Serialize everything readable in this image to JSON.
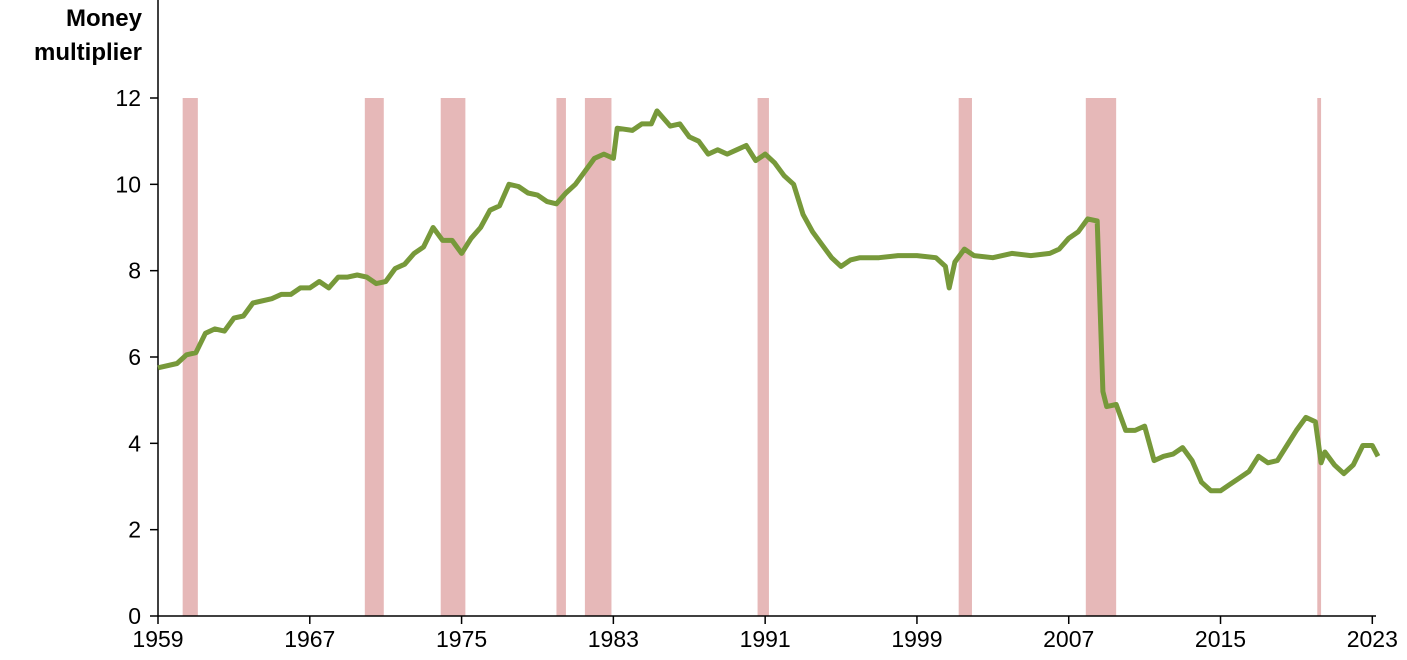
{
  "chart_data": {
    "type": "line",
    "y_label": "Money multiplier",
    "x": [
      1959,
      1960,
      1960.5,
      1961,
      1961.5,
      1962,
      1962.5,
      1963,
      1963.5,
      1964,
      1965,
      1965.5,
      1966,
      1966.5,
      1967,
      1967.5,
      1968,
      1968.5,
      1969,
      1969.5,
      1970,
      1970.5,
      1971,
      1971.5,
      1972,
      1972.5,
      1973,
      1973.5,
      1974,
      1974.5,
      1975,
      1975.5,
      1976,
      1976.5,
      1977,
      1977.5,
      1978,
      1978.5,
      1979,
      1979.5,
      1980,
      1980.5,
      1981,
      1981.5,
      1982,
      1982.5,
      1983,
      1983.2,
      1984,
      1984.5,
      1985,
      1985.3,
      1986,
      1986.5,
      1987,
      1987.5,
      1988,
      1988.5,
      1989,
      1989.5,
      1990,
      1990.5,
      1991,
      1991.5,
      1992,
      1992.5,
      1993,
      1993.5,
      1994,
      1994.5,
      1995,
      1995.5,
      1996,
      1997,
      1998,
      1999,
      2000,
      2000.5,
      2000.7,
      2001,
      2001.5,
      2002,
      2003,
      2004,
      2005,
      2006,
      2006.5,
      2007,
      2007.5,
      2008,
      2008.5,
      2008.8,
      2009,
      2009.5,
      2010,
      2010.5,
      2011,
      2011.5,
      2012,
      2012.5,
      2013,
      2013.5,
      2014,
      2014.5,
      2015,
      2015.5,
      2016,
      2016.5,
      2017,
      2017.5,
      2018,
      2018.5,
      2019,
      2019.5,
      2020,
      2020.3,
      2020.5,
      2021,
      2021.5,
      2022,
      2022.5,
      2023,
      2023.3
    ],
    "series": [
      {
        "name": "Money multiplier",
        "color": "#77993a",
        "values": [
          5.75,
          5.85,
          6.05,
          6.1,
          6.55,
          6.65,
          6.6,
          6.9,
          6.95,
          7.25,
          7.35,
          7.45,
          7.45,
          7.6,
          7.6,
          7.75,
          7.6,
          7.85,
          7.85,
          7.9,
          7.85,
          7.7,
          7.75,
          8.05,
          8.15,
          8.4,
          8.55,
          9.0,
          8.7,
          8.7,
          8.4,
          8.75,
          9.0,
          9.4,
          9.5,
          10.0,
          9.95,
          9.8,
          9.75,
          9.6,
          9.55,
          9.8,
          10.0,
          10.3,
          10.6,
          10.7,
          10.6,
          11.3,
          11.25,
          11.4,
          11.4,
          11.7,
          11.35,
          11.4,
          11.1,
          11.0,
          10.7,
          10.8,
          10.7,
          10.8,
          10.9,
          10.55,
          10.7,
          10.5,
          10.2,
          10.0,
          9.3,
          8.9,
          8.6,
          8.3,
          8.1,
          8.25,
          8.3,
          8.3,
          8.35,
          8.35,
          8.3,
          8.1,
          7.6,
          8.2,
          8.5,
          8.35,
          8.3,
          8.4,
          8.35,
          8.4,
          8.5,
          8.75,
          8.9,
          9.2,
          9.15,
          5.2,
          4.85,
          4.9,
          4.3,
          4.3,
          4.4,
          3.6,
          3.7,
          3.75,
          3.9,
          3.6,
          3.1,
          2.9,
          2.9,
          3.05,
          3.2,
          3.35,
          3.7,
          3.55,
          3.6,
          3.95,
          4.3,
          4.6,
          4.5,
          3.55,
          3.8,
          3.5,
          3.3,
          3.5,
          3.95,
          3.95,
          3.7
        ]
      }
    ],
    "recessions": [
      [
        1960.3,
        1961.1
      ],
      [
        1969.9,
        1970.9
      ],
      [
        1973.9,
        1975.2
      ],
      [
        1980.0,
        1980.5
      ],
      [
        1981.5,
        1982.9
      ],
      [
        1990.6,
        1991.2
      ],
      [
        2001.2,
        2001.9
      ],
      [
        2007.9,
        2009.5
      ],
      [
        2020.1,
        2020.3
      ]
    ],
    "recession_color": "#e6b8b8",
    "xlim": [
      1959,
      2023.3
    ],
    "xticks": [
      1959,
      1967,
      1975,
      1983,
      1991,
      1999,
      2007,
      2015,
      2023
    ],
    "ylim": [
      0,
      12
    ],
    "yticks": [
      0,
      2,
      4,
      6,
      8,
      10,
      12
    ]
  }
}
